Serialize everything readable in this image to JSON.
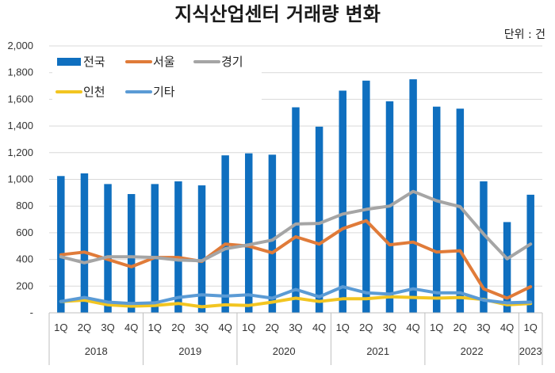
{
  "chart_data": {
    "type": "bar",
    "title": "지식산업센터 거래량 변화",
    "unit_label": "단위 : 건",
    "ylim": [
      0,
      2000
    ],
    "yticks": [
      "-",
      "200",
      "400",
      "600",
      "800",
      "1,000",
      "1,200",
      "1,400",
      "1,600",
      "1,800",
      "2,000"
    ],
    "grid": true,
    "legend_position": "top-left",
    "categories": [
      "1Q",
      "2Q",
      "3Q",
      "4Q",
      "1Q",
      "2Q",
      "3Q",
      "4Q",
      "1Q",
      "2Q",
      "3Q",
      "4Q",
      "1Q",
      "2Q",
      "3Q",
      "4Q",
      "1Q",
      "2Q",
      "3Q",
      "4Q",
      "1Q"
    ],
    "years": [
      {
        "label": "2018",
        "count": 4
      },
      {
        "label": "2019",
        "count": 4
      },
      {
        "label": "2020",
        "count": 4
      },
      {
        "label": "2021",
        "count": 4
      },
      {
        "label": "2022",
        "count": 4
      },
      {
        "label": "2023",
        "count": 1
      }
    ],
    "series": [
      {
        "name": "전국",
        "type": "bar",
        "color": "#0F6FBF",
        "values": [
          1025,
          1045,
          965,
          890,
          965,
          985,
          955,
          1180,
          1195,
          1185,
          1540,
          1395,
          1665,
          1740,
          1585,
          1750,
          1545,
          1530,
          985,
          680,
          885
        ]
      },
      {
        "name": "서울",
        "type": "line",
        "color": "#E07B39",
        "values": [
          435,
          455,
          400,
          345,
          415,
          415,
          385,
          515,
          500,
          450,
          570,
          515,
          630,
          690,
          510,
          530,
          455,
          465,
          180,
          110,
          195
        ]
      },
      {
        "name": "경기",
        "type": "line",
        "color": "#A5A5A5",
        "values": [
          420,
          375,
          420,
          420,
          415,
          395,
          390,
          480,
          510,
          545,
          665,
          670,
          740,
          775,
          800,
          910,
          840,
          795,
          590,
          405,
          515
        ]
      },
      {
        "name": "인천",
        "type": "line",
        "color": "#F2C521",
        "values": [
          85,
          95,
          60,
          50,
          55,
          70,
          45,
          60,
          55,
          80,
          110,
          85,
          105,
          105,
          120,
          115,
          110,
          115,
          100,
          60,
          70
        ]
      },
      {
        "name": "기타",
        "type": "line",
        "color": "#5B9BD5",
        "values": [
          85,
          115,
          80,
          70,
          75,
          115,
          135,
          125,
          135,
          110,
          175,
          120,
          195,
          150,
          140,
          180,
          150,
          150,
          95,
          75,
          80
        ]
      }
    ]
  }
}
